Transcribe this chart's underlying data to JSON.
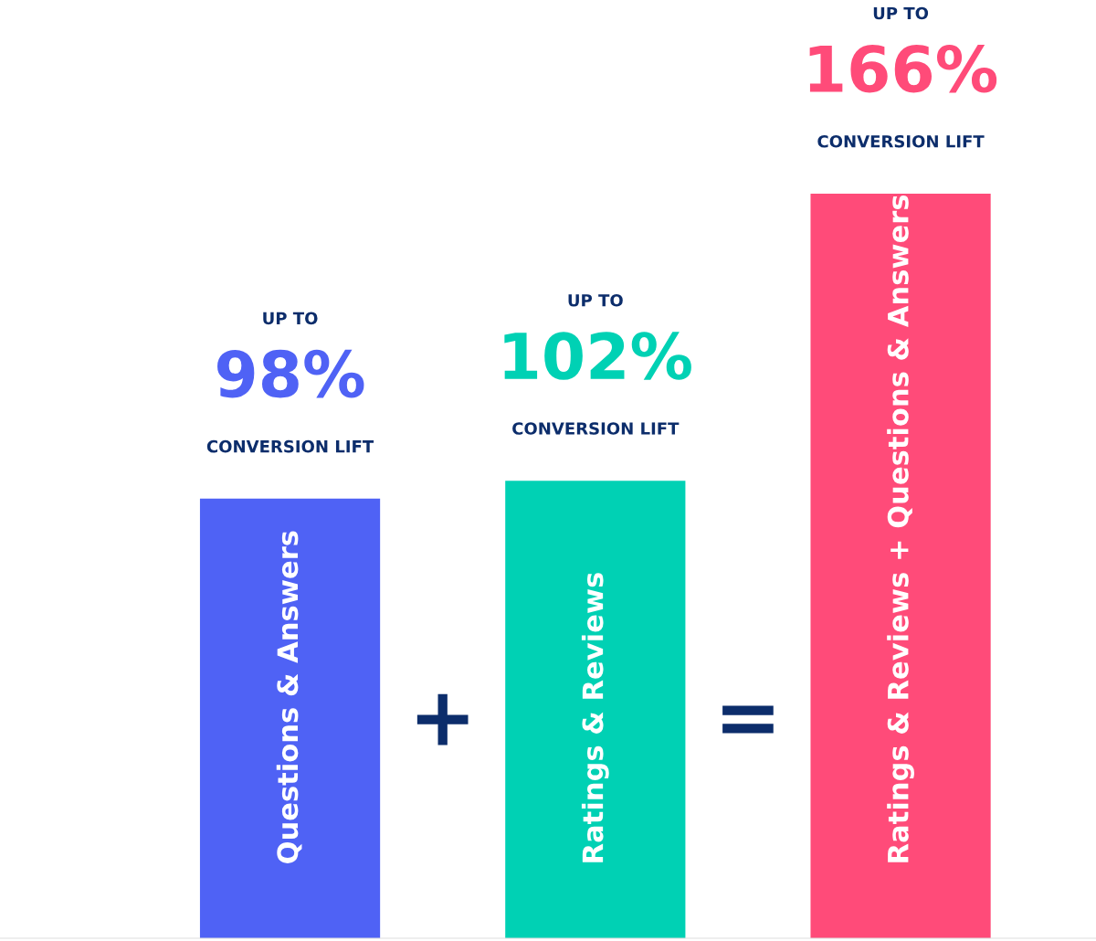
{
  "chart_data": {
    "type": "bar",
    "categories": [
      "Questions & Answers",
      "Ratings & Reviews",
      "Ratings & Reviews + Questions & Answers"
    ],
    "values": [
      98,
      102,
      166
    ],
    "colors": [
      "#4f62f5",
      "#00d1b4",
      "#ff4b79"
    ],
    "value_labels": [
      "98%",
      "102%",
      "166%"
    ],
    "legend": false,
    "annotations": [
      "UP TO",
      "CONVERSION LIFT",
      "UP TO",
      "CONVERSION LIFT",
      "UP TO",
      "CONVERSION LIFT",
      "+",
      "="
    ]
  }
}
